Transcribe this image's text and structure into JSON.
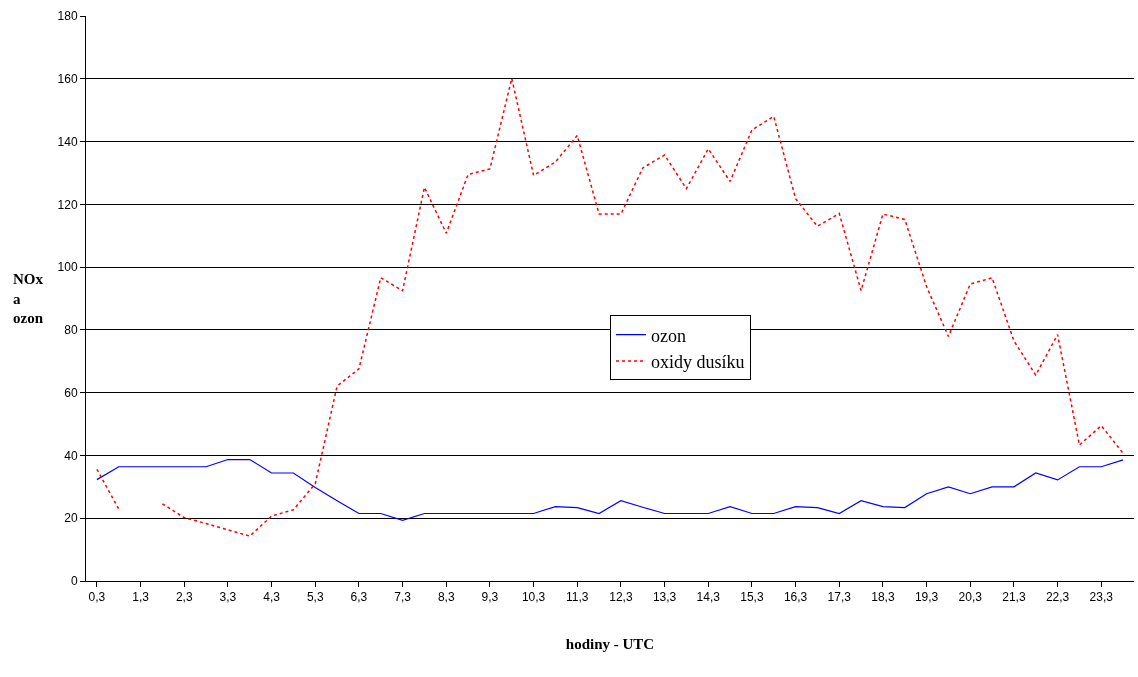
{
  "chart_data": {
    "type": "line",
    "xlabel": "hodiny - UTC",
    "ylabel": "NOx a ozon",
    "categories": [
      "0,3",
      null,
      "1,3",
      null,
      "2,3",
      null,
      "3,3",
      null,
      "4,3",
      null,
      "5,3",
      null,
      "6,3",
      null,
      "7,3",
      null,
      "8,3",
      null,
      "9,3",
      null,
      "10,3",
      null,
      "11,3",
      null,
      "12,3",
      null,
      "13,3",
      null,
      "14,3",
      null,
      "15,3",
      null,
      "16,3",
      null,
      "17,3",
      null,
      "18,3",
      null,
      "19,3",
      null,
      "20,3",
      null,
      "21,3",
      null,
      "22,3",
      null,
      "23,3",
      null
    ],
    "series": [
      {
        "name": "ozon",
        "color": "#0000ff",
        "line_style": "solid",
        "values": [
          32.3,
          36.4,
          36.4,
          36.4,
          36.4,
          36.4,
          38.7,
          38.7,
          34.4,
          34.4,
          29.8,
          25.6,
          21.5,
          21.5,
          19.3,
          21.5,
          21.5,
          21.5,
          21.5,
          21.5,
          21.5,
          23.7,
          23.4,
          21.5,
          25.6,
          23.5,
          21.5,
          21.5,
          21.5,
          23.7,
          21.5,
          21.5,
          23.7,
          23.4,
          21.5,
          25.6,
          23.7,
          23.4,
          27.8,
          30,
          27.8,
          30,
          30,
          34.4,
          32.2,
          36.4,
          36.4,
          38.6
        ]
      },
      {
        "name": "oxidy dusíku",
        "color": "#ff0000",
        "line_style": "dotted",
        "values": [
          35.6,
          22.9,
          null,
          24.6,
          20.2,
          18.3,
          16.3,
          14.3,
          20.7,
          22.7,
          31,
          62.1,
          67.6,
          96.6,
          92.5,
          125.4,
          110.8,
          129.5,
          131.3,
          160.1,
          129.2,
          133.5,
          141.9,
          116.9,
          116.9,
          131.6,
          135.7,
          125,
          137.7,
          127.3,
          143.7,
          148,
          121.8,
          113,
          117.1,
          92.5,
          116.9,
          115.2,
          93.8,
          77.9,
          94.6,
          96.6,
          76.5,
          65.6,
          78.5,
          43.3,
          49.5,
          40.7
        ]
      }
    ],
    "ylim": [
      0,
      180
    ],
    "yticks": [
      0,
      20,
      40,
      60,
      80,
      100,
      120,
      140,
      160,
      180
    ],
    "grid": "y",
    "legend": "center right",
    "marker": "none"
  }
}
